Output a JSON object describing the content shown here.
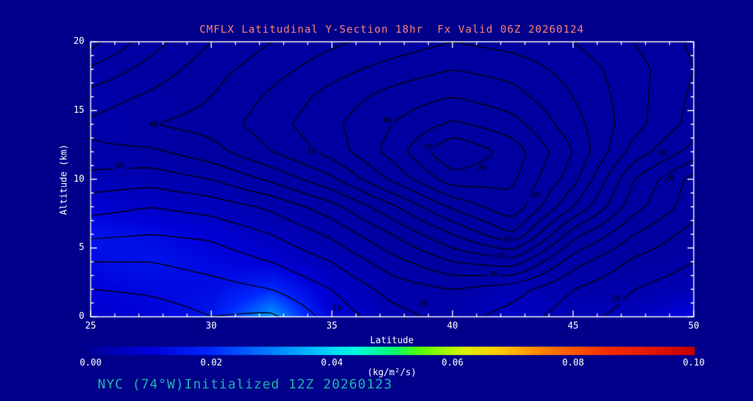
{
  "page": {
    "background": "#00008B"
  },
  "header": {
    "title": "CMFLX Latitudinal Y-Section 18hr  Fx Valid 06Z 20260124",
    "color": "#FA8072"
  },
  "footer": {
    "text": "NYC (74°W)Initialized 12Z 20260123",
    "color": "#20B2AA"
  },
  "chart_data": {
    "type": "heatmap",
    "title": "CMFLX Latitudinal Y-Section 18hr  Fx Valid 06Z 20260124",
    "xlabel": "Latitude",
    "ylabel": "Altitude (km)",
    "xlim": [
      25,
      50
    ],
    "ylim": [
      0,
      20
    ],
    "x_ticks": [
      25,
      30,
      35,
      40,
      45,
      50
    ],
    "y_ticks": [
      0,
      5,
      10,
      15,
      20
    ],
    "axis_color": "#FFFFFF",
    "lat_grid": [
      25,
      27.5,
      30,
      32.5,
      35,
      37.5,
      40,
      42.5,
      45,
      47.5,
      50
    ],
    "alt_grid": [
      0,
      2,
      4,
      6,
      8,
      10,
      12,
      14,
      16,
      18,
      20
    ],
    "contour": {
      "line_color": "#000000",
      "interval": 5,
      "levels": [
        5,
        10,
        15,
        20,
        25,
        30,
        35,
        40,
        45,
        50,
        55,
        60,
        65,
        70,
        75
      ],
      "values": [
        [
          0,
          2,
          5,
          4,
          12,
          18,
          22,
          18,
          12,
          8,
          5
        ],
        [
          5,
          6,
          8,
          10,
          15,
          22,
          25,
          22,
          15,
          10,
          7
        ],
        [
          10,
          10,
          12,
          15,
          20,
          28,
          35,
          38,
          22,
          14,
          10
        ],
        [
          16,
          15,
          16,
          20,
          26,
          35,
          45,
          55,
          32,
          20,
          13
        ],
        [
          22,
          20,
          22,
          26,
          33,
          44,
          56,
          64,
          45,
          27,
          17
        ],
        [
          28,
          27,
          30,
          36,
          44,
          56,
          68,
          66,
          52,
          30,
          18
        ],
        [
          34,
          34,
          38,
          45,
          52,
          62,
          75,
          68,
          55,
          38,
          28
        ],
        [
          36,
          40,
          42,
          48,
          54,
          60,
          66,
          62,
          52,
          42,
          33
        ],
        [
          32,
          36,
          40,
          46,
          52,
          57,
          60,
          57,
          50,
          42,
          34
        ],
        [
          26,
          32,
          38,
          43,
          48,
          52,
          55,
          53,
          48,
          42,
          35
        ],
        [
          18,
          28,
          35,
          40,
          44,
          47,
          50,
          48,
          45,
          40,
          34
        ]
      ],
      "labels": [
        {
          "text": "30",
          "lat": 26.2,
          "alt": 11.0
        },
        {
          "text": "40",
          "lat": 27.6,
          "alt": 14.0
        },
        {
          "text": "50",
          "lat": 34.2,
          "alt": 12.0
        },
        {
          "text": "60",
          "lat": 37.3,
          "alt": 14.3
        },
        {
          "text": "70",
          "lat": 39.0,
          "alt": 12.3
        },
        {
          "text": "70",
          "lat": 41.2,
          "alt": 10.8
        },
        {
          "text": "60",
          "lat": 43.4,
          "alt": 8.8
        },
        {
          "text": "50",
          "lat": 42.3,
          "alt": 5.6
        },
        {
          "text": "40",
          "lat": 42.0,
          "alt": 4.4
        },
        {
          "text": "30",
          "lat": 41.7,
          "alt": 3.1
        },
        {
          "text": "20",
          "lat": 38.8,
          "alt": 0.9
        },
        {
          "text": "10",
          "lat": 35.2,
          "alt": 0.6
        },
        {
          "text": "10",
          "lat": 46.8,
          "alt": 1.3
        },
        {
          "text": "20",
          "lat": 49.0,
          "alt": 10.1
        },
        {
          "text": "30",
          "lat": 48.7,
          "alt": 11.9
        }
      ]
    },
    "shading": {
      "units": "(kg/m²/s)",
      "min": 0.0,
      "max": 0.1,
      "values": [
        [
          0.008,
          0.01,
          0.016,
          0.034,
          0.01,
          0.003,
          0.002,
          0.007,
          0.004,
          0.005,
          0.012
        ],
        [
          0.01,
          0.012,
          0.013,
          0.02,
          0.007,
          0.002,
          0.001,
          0.004,
          0.002,
          0.002,
          0.004
        ],
        [
          0.013,
          0.015,
          0.012,
          0.009,
          0.004,
          0.001,
          0.0,
          0.001,
          0.001,
          0.0,
          0.001
        ],
        [
          0.015,
          0.013,
          0.009,
          0.005,
          0.002,
          0.0,
          0.0,
          0.0,
          0.0,
          0.0,
          0.0
        ],
        [
          0.009,
          0.007,
          0.005,
          0.002,
          0.001,
          0.0,
          0.0,
          0.0,
          0.0,
          0.0,
          0.0
        ],
        [
          0.004,
          0.003,
          0.002,
          0.001,
          0.0,
          0.0,
          0.0,
          0.0,
          0.0,
          0.0,
          0.0
        ],
        [
          0.002,
          0.001,
          0.0,
          0.0,
          0.0,
          0.0,
          0.0,
          0.0,
          0.0,
          0.0,
          0.0
        ],
        [
          0.002,
          0.001,
          0.0,
          0.0,
          0.0,
          0.0,
          0.0,
          0.0,
          0.0,
          0.0,
          0.0
        ],
        [
          0.002,
          0.001,
          0.0,
          0.0,
          0.0,
          0.0,
          0.0,
          0.0,
          0.0,
          0.0,
          0.0
        ],
        [
          0.001,
          0.0,
          0.0,
          0.0,
          0.0,
          0.0,
          0.0,
          0.0,
          0.0,
          0.0,
          0.0
        ],
        [
          0.001,
          0.001,
          0.0,
          0.0,
          0.0,
          0.0,
          0.0,
          0.0,
          0.0,
          0.0,
          0.0
        ]
      ]
    },
    "colorbar": {
      "tick_labels": [
        "0.00",
        "0.02",
        "0.04",
        "0.06",
        "0.08",
        "0.10"
      ],
      "tick_values": [
        0.0,
        0.02,
        0.04,
        0.06,
        0.08,
        0.1
      ],
      "stops": [
        {
          "p": 0.0,
          "c": "#0000A0"
        },
        {
          "p": 0.1,
          "c": "#0000D8"
        },
        {
          "p": 0.2,
          "c": "#0028FF"
        },
        {
          "p": 0.3,
          "c": "#0080FF"
        },
        {
          "p": 0.38,
          "c": "#00C8FF"
        },
        {
          "p": 0.44,
          "c": "#00FFE0"
        },
        {
          "p": 0.5,
          "c": "#00FF70"
        },
        {
          "p": 0.55,
          "c": "#60FF00"
        },
        {
          "p": 0.62,
          "c": "#E0F000"
        },
        {
          "p": 0.68,
          "c": "#FFC800"
        },
        {
          "p": 0.75,
          "c": "#FF8000"
        },
        {
          "p": 0.85,
          "c": "#FF3000"
        },
        {
          "p": 1.0,
          "c": "#C80000"
        }
      ]
    }
  }
}
